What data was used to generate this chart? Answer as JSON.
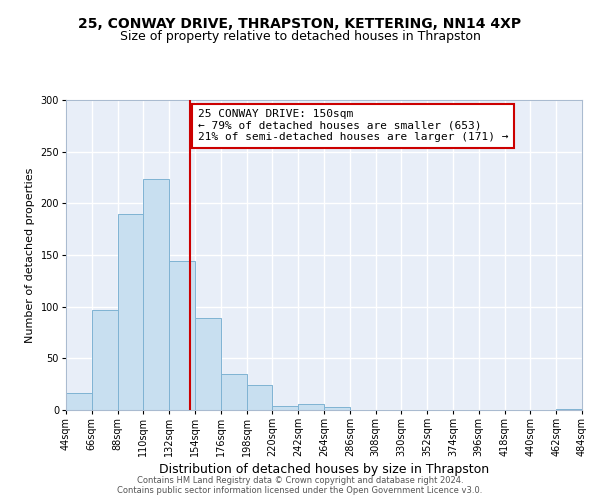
{
  "title": "25, CONWAY DRIVE, THRAPSTON, KETTERING, NN14 4XP",
  "subtitle": "Size of property relative to detached houses in Thrapston",
  "xlabel": "Distribution of detached houses by size in Thrapston",
  "ylabel": "Number of detached properties",
  "bar_edges": [
    44,
    66,
    88,
    110,
    132,
    154,
    176,
    198,
    220,
    242,
    264,
    286,
    308,
    330,
    352,
    374,
    396,
    418,
    440,
    462,
    484
  ],
  "bar_heights": [
    16,
    97,
    190,
    224,
    144,
    89,
    35,
    24,
    4,
    6,
    3,
    0,
    0,
    0,
    0,
    0,
    0,
    0,
    0,
    1
  ],
  "bar_color": "#c8dff0",
  "bar_edge_color": "#7fb3d3",
  "vline_x": 150,
  "vline_color": "#cc0000",
  "annotation_line1": "25 CONWAY DRIVE: 150sqm",
  "annotation_line2": "← 79% of detached houses are smaller (653)",
  "annotation_line3": "21% of semi-detached houses are larger (171) →",
  "annotation_box_color": "#ffffff",
  "annotation_box_edge": "#cc0000",
  "ylim": [
    0,
    300
  ],
  "yticks": [
    0,
    50,
    100,
    150,
    200,
    250,
    300
  ],
  "footer_line1": "Contains HM Land Registry data © Crown copyright and database right 2024.",
  "footer_line2": "Contains public sector information licensed under the Open Government Licence v3.0.",
  "background_color": "#ffffff",
  "plot_bg_color": "#e8eef8",
  "title_fontsize": 10,
  "subtitle_fontsize": 9,
  "xlabel_fontsize": 9,
  "ylabel_fontsize": 8,
  "tick_label_fontsize": 7,
  "annotation_fontsize": 8,
  "footer_fontsize": 6
}
